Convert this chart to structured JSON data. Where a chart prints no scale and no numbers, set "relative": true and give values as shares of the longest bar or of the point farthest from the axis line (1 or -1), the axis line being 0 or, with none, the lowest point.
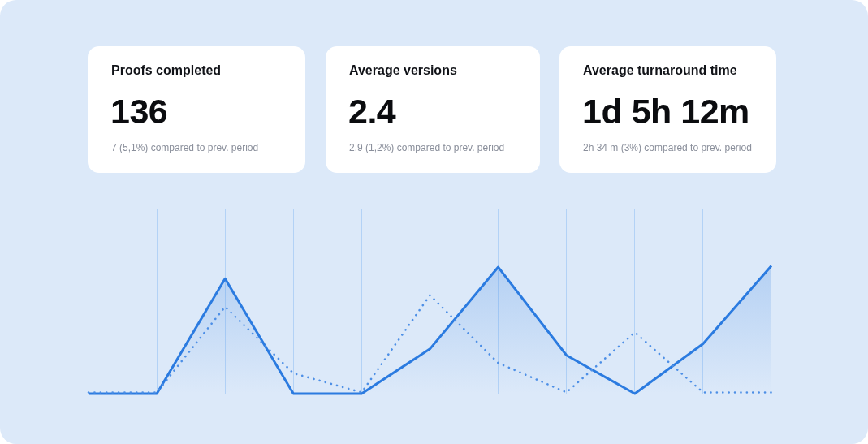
{
  "chart_data": [
    {
      "type": "other",
      "title": "Proofs completed",
      "annotations": [
        "136",
        "7 (5,1%) compared to prev. period"
      ]
    },
    {
      "type": "other",
      "title": "Average versions",
      "annotations": [
        "2.4",
        "2.9 (1,2%) compared to prev. period"
      ]
    },
    {
      "type": "other",
      "title": "Average turnaround time",
      "annotations": [
        "1d 5h 12m",
        "2h 34 m (3%) compared to prev. period"
      ]
    },
    {
      "type": "area",
      "relative": true,
      "categories": [
        null,
        null,
        null,
        null,
        null,
        null,
        null,
        null,
        null,
        null,
        null
      ],
      "grid": "x",
      "marker": "none",
      "series": [
        {
          "type": "area",
          "color": "#2b7be0",
          "values": [
            0,
            0,
            0.9,
            0,
            0,
            0.35,
            0.99,
            0.3,
            0,
            0.39,
            1
          ]
        },
        {
          "type": "line",
          "color": "#4d8fe6",
          "line_style": "dotted",
          "values": [
            0.01,
            0.01,
            0.68,
            0.16,
            0.01,
            0.77,
            0.24,
            0.01,
            0.48,
            0.01,
            0.01
          ]
        }
      ]
    }
  ]
}
